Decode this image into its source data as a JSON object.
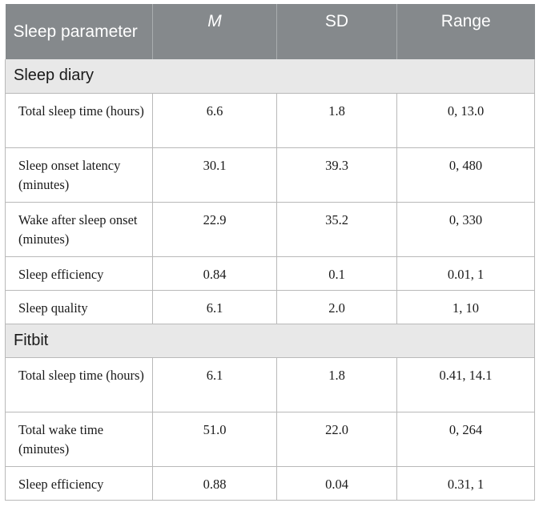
{
  "table": {
    "headers": [
      "Sleep parameter",
      "M",
      "SD",
      "Range"
    ],
    "sections": [
      {
        "title": "Sleep diary",
        "rows": [
          {
            "parameter": "Total sleep time (hours)",
            "m": "6.6",
            "sd": "1.8",
            "range": "0, 13.0"
          },
          {
            "parameter": "Sleep onset latency (minutes)",
            "m": "30.1",
            "sd": "39.3",
            "range": "0, 480"
          },
          {
            "parameter": "Wake after sleep onset (minutes)",
            "m": "22.9",
            "sd": "35.2",
            "range": "0, 330"
          },
          {
            "parameter": "Sleep efficiency",
            "m": "0.84",
            "sd": "0.1",
            "range": "0.01, 1"
          },
          {
            "parameter": "Sleep quality",
            "m": "6.1",
            "sd": "2.0",
            "range": "1, 10"
          }
        ]
      },
      {
        "title": "Fitbit",
        "rows": [
          {
            "parameter": "Total sleep time (hours)",
            "m": "6.1",
            "sd": "1.8",
            "range": "0.41, 14.1"
          },
          {
            "parameter": "Total wake time (minutes)",
            "m": "51.0",
            "sd": "22.0",
            "range": "0, 264"
          },
          {
            "parameter": "Sleep efficiency",
            "m": "0.88",
            "sd": "0.04",
            "range": "0.31, 1"
          }
        ]
      }
    ]
  },
  "colors": {
    "header_bg": "#85898c",
    "section_bg": "#e8e8e8",
    "border": "#b9b9b9"
  }
}
